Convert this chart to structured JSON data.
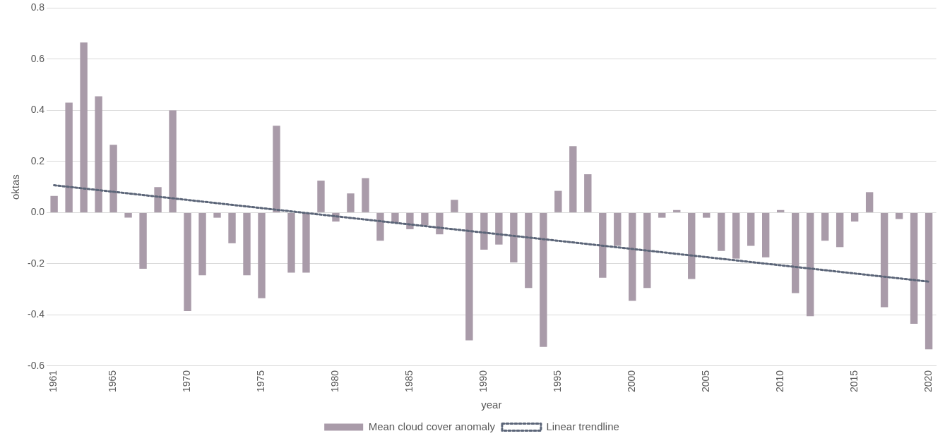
{
  "chart_data": {
    "type": "bar",
    "xlabel": "year",
    "ylabel": "oktas",
    "categories": [
      "1961",
      null,
      null,
      null,
      "1965",
      null,
      null,
      null,
      null,
      "1970",
      null,
      null,
      null,
      null,
      "1975",
      null,
      null,
      null,
      null,
      "1980",
      null,
      null,
      null,
      null,
      "1985",
      null,
      null,
      null,
      null,
      "1990",
      null,
      null,
      null,
      null,
      "1995",
      null,
      null,
      null,
      null,
      "2000",
      null,
      null,
      null,
      null,
      "2005",
      null,
      null,
      null,
      null,
      "2010",
      null,
      null,
      null,
      null,
      "2015",
      null,
      null,
      null,
      null,
      "2020"
    ],
    "series": [
      {
        "name": "Mean cloud cover anomaly",
        "color": "#a99ba9",
        "values": [
          0.065,
          0.43,
          0.665,
          0.455,
          0.265,
          -0.02,
          -0.22,
          0.1,
          0.4,
          -0.385,
          -0.245,
          -0.02,
          -0.12,
          -0.245,
          -0.335,
          0.34,
          -0.235,
          -0.235,
          0.125,
          -0.035,
          0.075,
          0.135,
          -0.11,
          -0.04,
          -0.065,
          -0.05,
          -0.085,
          0.05,
          -0.5,
          -0.145,
          -0.125,
          -0.195,
          -0.295,
          -0.525,
          0.085,
          0.26,
          0.15,
          -0.255,
          -0.13,
          -0.345,
          -0.295,
          -0.02,
          0.01,
          -0.26,
          -0.02,
          -0.15,
          -0.18,
          -0.13,
          -0.175,
          0.01,
          -0.315,
          -0.405,
          -0.11,
          -0.135,
          -0.035,
          0.08,
          -0.37,
          -0.025,
          -0.435,
          -0.535
        ]
      },
      {
        "name": "Linear trendline",
        "type": "line",
        "color": "#5b6578",
        "line_style": "dotted",
        "values": [
          0.107,
          null,
          null,
          null,
          null,
          null,
          null,
          null,
          null,
          null,
          null,
          null,
          null,
          null,
          null,
          null,
          null,
          null,
          null,
          null,
          null,
          null,
          null,
          null,
          null,
          null,
          null,
          null,
          null,
          null,
          null,
          null,
          null,
          null,
          null,
          null,
          null,
          null,
          null,
          null,
          null,
          null,
          null,
          null,
          null,
          null,
          null,
          null,
          null,
          null,
          null,
          null,
          null,
          null,
          null,
          null,
          null,
          null,
          null,
          -0.27
        ]
      }
    ],
    "ylim": [
      -0.6,
      0.8
    ],
    "yticks": [
      -0.6,
      -0.4,
      -0.2,
      {
        "value": 0,
        "label": "0.0"
      },
      0.2,
      0.4,
      0.6,
      0.8
    ],
    "grid": "y",
    "legend": "bottom",
    "marker": "none"
  }
}
